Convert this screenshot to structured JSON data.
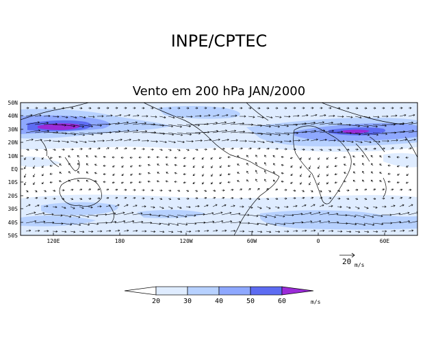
{
  "header": {
    "title": "INPE/CPTEC"
  },
  "map": {
    "subtitle": "Vento em 200 hPa JAN/2000",
    "lat_labels": [
      "50N",
      "40N",
      "30N",
      "20N",
      "10N",
      "EQ",
      "10S",
      "20S",
      "30S",
      "40S",
      "50S"
    ],
    "lon_labels": [
      "120E",
      "180",
      "120W",
      "60W",
      "0",
      "60E"
    ]
  },
  "reference_vector": {
    "value": "20",
    "unit": "m/s"
  },
  "colorbar": {
    "levels": [
      "20",
      "30",
      "40",
      "50",
      "60"
    ],
    "unit": "m/s",
    "colors": [
      "#ffffff",
      "#dfecff",
      "#b7d1ff",
      "#8ea8ff",
      "#5d6cf2",
      "#9b2bd8"
    ]
  }
}
